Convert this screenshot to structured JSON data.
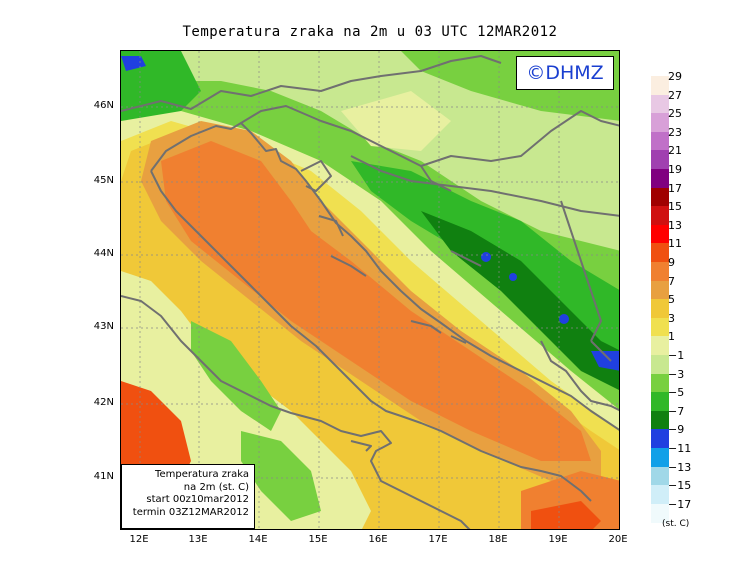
{
  "title": "Temperatura zraka na 2m u 03 UTC 12MAR2012",
  "logo": "©DHMZ",
  "info_box": {
    "line1": "Temperatura zraka",
    "line2": "na 2m (st. C)",
    "line3": "start 00z10mar2012",
    "line4": "termin 03Z12MAR2012"
  },
  "axes": {
    "lat_labels": [
      "46N",
      "45N",
      "44N",
      "43N",
      "42N",
      "41N"
    ],
    "lon_labels": [
      "12E",
      "13E",
      "14E",
      "15E",
      "16E",
      "17E",
      "18E",
      "19E",
      "20E"
    ]
  },
  "legend": {
    "units": "(st. C)",
    "labels": [
      "29",
      "27",
      "25",
      "23",
      "21",
      "19",
      "17",
      "15",
      "13",
      "11",
      "9",
      "7",
      "5",
      "3",
      "1",
      "−1",
      "−3",
      "−5",
      "−7",
      "−9",
      "−11",
      "−13",
      "−15",
      "−17"
    ],
    "colors": [
      "#fbeee0",
      "#e8c8e4",
      "#d8a0d8",
      "#c070c8",
      "#a040b0",
      "#800080",
      "#a00000",
      "#d01010",
      "#ff0000",
      "#f05010",
      "#f08030",
      "#e8a040",
      "#f0c838",
      "#f0e050",
      "#e8f0a0",
      "#c8e890",
      "#78d040",
      "#30b828",
      "#108010",
      "#2040e0",
      "#10a0e8",
      "#a0d8e8",
      "#d0eef8",
      "#f0fafc"
    ]
  },
  "colors": {
    "sea_dark": "#f08030",
    "sea_mid": "#e8a040",
    "coast_warm": "#f0c838",
    "light_yellow": "#f0e050",
    "pale": "#e8f0a0",
    "light_green": "#c8e890",
    "green": "#78d040",
    "mid_green": "#30b828",
    "dark_green": "#108010",
    "blue": "#2040e0",
    "red_orange": "#f05010",
    "borders": "#707070"
  }
}
